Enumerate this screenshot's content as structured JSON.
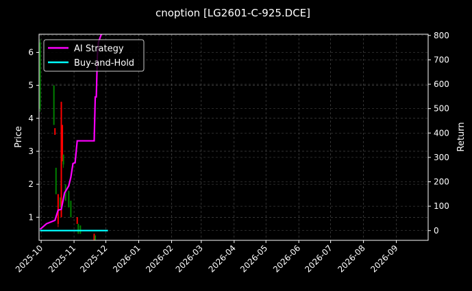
{
  "chart_data": {
    "type": "line",
    "title": "cnoption [LG2601-C-925.DCE]",
    "ylabel": "Price",
    "y2label": "Return",
    "xlim": [
      "2025-09-29",
      "2026-10-01"
    ],
    "ylim": [
      0.3,
      6.55
    ],
    "y2lim": [
      -40,
      805
    ],
    "xticks": [
      "2025-10",
      "2025-11",
      "2025-12",
      "2026-01",
      "2026-02",
      "2026-03",
      "2026-04",
      "2026-05",
      "2026-06",
      "2026-07",
      "2026-08",
      "2026-09"
    ],
    "yticks": [
      1,
      2,
      3,
      4,
      5,
      6
    ],
    "y2ticks": [
      0,
      100,
      200,
      300,
      400,
      500,
      600,
      700,
      800
    ],
    "grid": true,
    "legend_placement": "top-left",
    "colors": {
      "background": "#000000",
      "up": "#008000",
      "down": "#ff0000",
      "ai": "#ff00ff",
      "bh": "#00ffff",
      "grid": "#555555"
    },
    "candles": [
      {
        "date": "2025-09-30",
        "open": 4.3,
        "close": 6.3,
        "high": 6.4,
        "low": 4.2
      },
      {
        "date": "2025-10-13",
        "open": 3.8,
        "close": 5.0,
        "high": 5.0,
        "low": 3.8
      },
      {
        "date": "2025-10-14",
        "open": 3.7,
        "close": 3.5,
        "high": 3.7,
        "low": 3.5
      },
      {
        "date": "2025-10-15",
        "open": 1.7,
        "close": 2.5,
        "high": 2.5,
        "low": 1.7
      },
      {
        "date": "2025-10-17",
        "open": 1.7,
        "close": 0.8,
        "high": 1.7,
        "low": 0.7
      },
      {
        "date": "2025-10-19",
        "open": 1.3,
        "close": 1.6,
        "high": 1.6,
        "low": 1.3
      },
      {
        "date": "2025-10-20",
        "open": 4.5,
        "close": 1.0,
        "high": 4.5,
        "low": 1.0
      },
      {
        "date": "2025-10-21",
        "open": 3.8,
        "close": 2.7,
        "high": 3.8,
        "low": 2.7
      },
      {
        "date": "2025-10-22",
        "open": 2.6,
        "close": 2.9,
        "high": 2.9,
        "low": 2.5
      },
      {
        "date": "2025-10-24",
        "open": 1.5,
        "close": 2.0,
        "high": 2.0,
        "low": 1.5
      },
      {
        "date": "2025-10-27",
        "open": 1.3,
        "close": 1.8,
        "high": 1.8,
        "low": 1.3
      },
      {
        "date": "2025-10-29",
        "open": 1.0,
        "close": 1.5,
        "high": 1.5,
        "low": 1.0
      },
      {
        "date": "2025-11-04",
        "open": 1.0,
        "close": 0.8,
        "high": 1.0,
        "low": 0.8
      },
      {
        "date": "2025-11-05",
        "open": 0.5,
        "close": 0.8,
        "high": 0.8,
        "low": 0.5
      },
      {
        "date": "2025-11-07",
        "open": 0.5,
        "close": 0.75,
        "high": 0.75,
        "low": 0.5
      },
      {
        "date": "2025-11-20",
        "open": 0.5,
        "close": 0.3,
        "high": 0.5,
        "low": 0.3
      },
      {
        "date": "2025-11-21",
        "open": 0.3,
        "close": 0.45,
        "high": 0.45,
        "low": 0.3
      }
    ],
    "series": [
      {
        "name": "AI Strategy",
        "axis": "right",
        "color": "#ff00ff",
        "x": [
          "2025-09-30",
          "2025-10-06",
          "2025-10-14",
          "2025-10-17",
          "2025-10-20",
          "2025-10-23",
          "2025-10-27",
          "2025-10-29",
          "2025-10-31",
          "2025-11-02",
          "2025-11-04",
          "2025-11-20",
          "2025-11-21",
          "2025-11-22",
          "2025-11-23",
          "2025-11-24",
          "2025-11-28"
        ],
        "y": [
          5,
          28,
          42,
          84,
          87,
          154,
          183,
          219,
          275,
          278,
          368,
          368,
          548,
          548,
          716,
          772,
          820
        ]
      },
      {
        "name": "Buy-and-Hold",
        "axis": "right",
        "color": "#00ffff",
        "x": [
          "2025-09-30",
          "2025-12-03"
        ],
        "y": [
          0,
          0
        ]
      }
    ]
  }
}
